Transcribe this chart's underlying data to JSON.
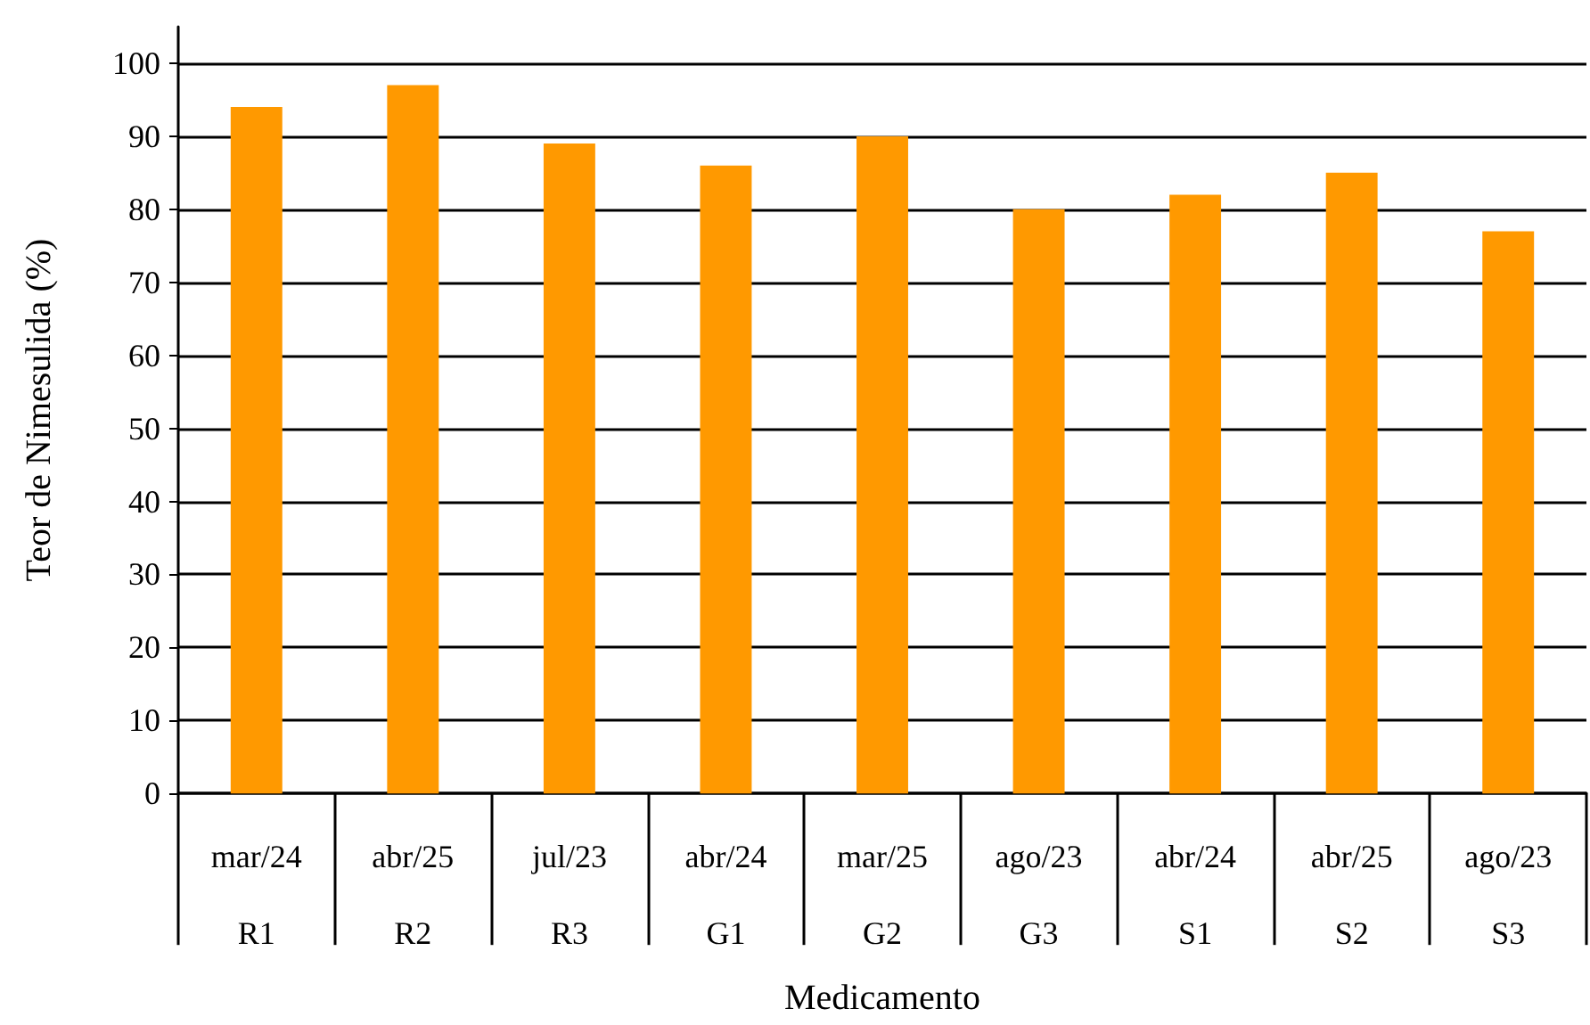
{
  "chart_data": {
    "type": "bar",
    "xlabel": "Medicamento",
    "ylabel": "Teor de Nimesulida (%)",
    "categories": [
      "mar/24\nR1",
      "abr/25\nR2",
      "jul/23\nR3",
      "abr/24\nG1",
      "mar/25\nG2",
      "ago/23\nG3",
      "abr/24\nS1",
      "abr/25\nS2",
      "ago/23\nS3"
    ],
    "values": [
      94,
      97,
      89,
      86,
      90,
      80,
      82,
      85,
      77
    ],
    "color": "#ff9900",
    "ylim": [
      0,
      105
    ],
    "yticks": [
      0,
      10,
      20,
      30,
      40,
      50,
      60,
      70,
      80,
      90,
      100
    ],
    "grid": "y"
  }
}
